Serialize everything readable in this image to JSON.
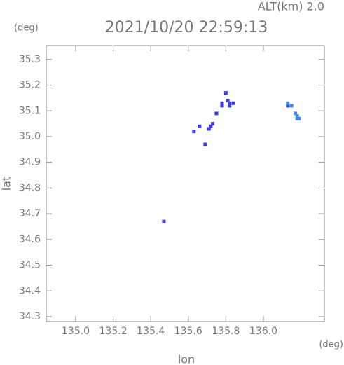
{
  "chart_data": {
    "type": "scatter",
    "title": "2021/10/20 22:59:13",
    "altitude_label": "ALT(km) 2.0",
    "xlabel": "lon",
    "ylabel": "lat",
    "xunit": "(deg)",
    "yunit": "(deg)",
    "xlim": [
      134.843,
      136.325
    ],
    "ylim": [
      34.281,
      35.354
    ],
    "xticks": [
      {
        "value": 135,
        "label": "135.0"
      },
      135.2,
      135.4,
      135.6,
      135.8,
      {
        "value": 136,
        "label": "136.0"
      }
    ],
    "yticks": [
      34.3,
      34.4,
      34.5,
      34.6,
      34.7,
      34.8,
      34.9,
      {
        "value": 35,
        "label": "35.0"
      },
      35.1,
      35.2,
      35.3
    ],
    "series": [
      {
        "color": "#3c3ce6",
        "x": [
          135.8,
          135.78,
          135.82,
          135.84,
          135.78,
          135.82,
          135.81,
          135.71,
          135.72,
          135.73,
          135.66,
          135.63,
          135.75,
          135.69,
          135.47,
          136.13
        ],
        "y": [
          35.17,
          35.13,
          35.13,
          35.13,
          35.12,
          35.12,
          35.14,
          35.03,
          35.04,
          35.05,
          35.04,
          35.02,
          35.09,
          34.97,
          34.67,
          35.12
        ]
      },
      {
        "color": "#3c8ce6",
        "x": [
          136.13,
          136.15,
          136.17,
          136.18,
          136.19,
          136.18
        ],
        "y": [
          35.13,
          35.12,
          35.09,
          35.08,
          35.07,
          35.07
        ]
      }
    ]
  }
}
